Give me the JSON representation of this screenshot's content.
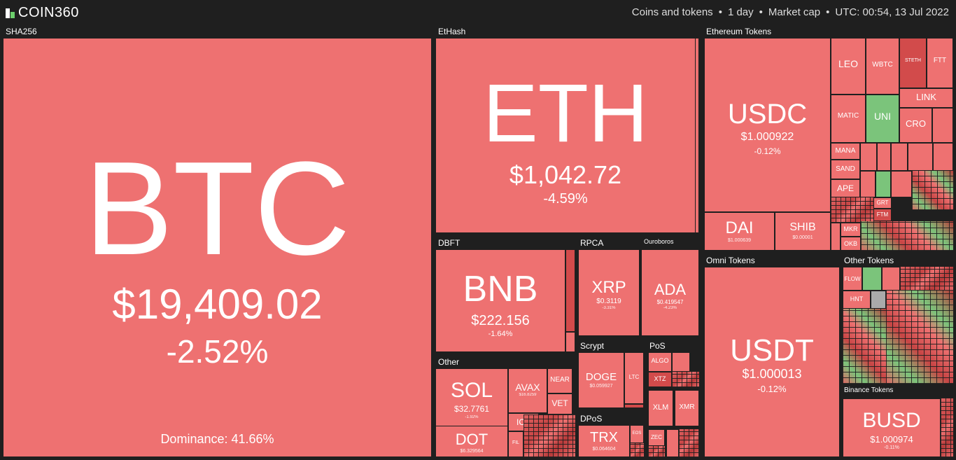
{
  "app": {
    "name": "COIN360"
  },
  "header": {
    "filters": [
      "Coins and tokens",
      "1 day",
      "Market cap",
      "UTC: 00:54, 13 Jul 2022"
    ],
    "separator": "•"
  },
  "groups": {
    "sha256": "SHA256",
    "ethash": "EtHash",
    "ethereum_tokens": "Ethereum Tokens",
    "dbft": "DBFT",
    "rpca": "RPCA",
    "ouroboros": "Ouroboros",
    "omni_tokens": "Omni Tokens",
    "other_tokens": "Other Tokens",
    "other": "Other",
    "scrypt": "Scrypt",
    "pos": "PoS",
    "dpos": "DPoS",
    "binance_tokens": "Binance Tokens"
  },
  "coins": {
    "btc": {
      "symbol": "BTC",
      "price": "$19,409.02",
      "change": "-2.52%",
      "dominance": "Dominance: 41.66%"
    },
    "eth": {
      "symbol": "ETH",
      "price": "$1,042.72",
      "change": "-4.59%"
    },
    "bnb": {
      "symbol": "BNB",
      "price": "$222.156",
      "change": "-1.64%"
    },
    "xrp": {
      "symbol": "XRP",
      "price": "$0.3119",
      "change": "-3.31%"
    },
    "ada": {
      "symbol": "ADA",
      "price": "$0.419547",
      "change": "-4.23%"
    },
    "usdc": {
      "symbol": "USDC",
      "price": "$1.000922",
      "change": "-0.12%"
    },
    "dai": {
      "symbol": "DAI",
      "price": "$1.000639"
    },
    "shib": {
      "symbol": "SHIB",
      "price": "$0.00001"
    },
    "usdt": {
      "symbol": "USDT",
      "price": "$1.000013",
      "change": "-0.12%"
    },
    "busd": {
      "symbol": "BUSD",
      "price": "$1.000974",
      "change": "-0.11%"
    },
    "sol": {
      "symbol": "SOL",
      "price": "$32.7761",
      "change": "-1.92%"
    },
    "dot": {
      "symbol": "DOT",
      "price": "$6.329564"
    },
    "doge": {
      "symbol": "DOGE",
      "price": "$0.059927"
    },
    "trx": {
      "symbol": "TRX",
      "price": "$0.064604"
    },
    "avax": {
      "symbol": "AVAX",
      "price": "$16.8259"
    },
    "near": {
      "symbol": "NEAR"
    },
    "vet": {
      "symbol": "VET"
    },
    "icp": {
      "symbol": "ICP"
    },
    "fil": {
      "symbol": "FIL"
    },
    "ltc": {
      "symbol": "LTC"
    },
    "algo": {
      "symbol": "ALGO"
    },
    "xtz": {
      "symbol": "XTZ"
    },
    "xlm": {
      "symbol": "XLM"
    },
    "xmr": {
      "symbol": "XMR"
    },
    "zec": {
      "symbol": "ZEC"
    },
    "eos": {
      "symbol": "EOS"
    },
    "leo": {
      "symbol": "LEO"
    },
    "wbtc": {
      "symbol": "WBTC"
    },
    "steth": {
      "symbol": "STETH"
    },
    "ftt": {
      "symbol": "FTT"
    },
    "link": {
      "symbol": "LINK"
    },
    "matic": {
      "symbol": "MATIC"
    },
    "uni": {
      "symbol": "UNI"
    },
    "cro": {
      "symbol": "CRO"
    },
    "mana": {
      "symbol": "MANA"
    },
    "sand": {
      "symbol": "SAND"
    },
    "ape": {
      "symbol": "APE"
    },
    "grt": {
      "symbol": "GRT"
    },
    "ftm": {
      "symbol": "FTM"
    },
    "mkr": {
      "symbol": "MKR"
    },
    "okb": {
      "symbol": "OKB"
    },
    "flow": {
      "symbol": "FLOW"
    },
    "hnt": {
      "symbol": "HNT"
    }
  }
}
